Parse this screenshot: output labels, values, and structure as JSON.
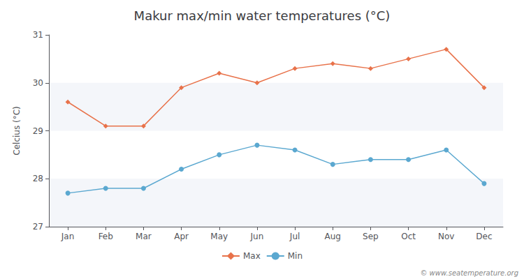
{
  "chart_data": {
    "type": "line",
    "title": "Makur max/min water temperatures (°C)",
    "ylabel": "Celcius (°C)",
    "categories": [
      "Jan",
      "Feb",
      "Mar",
      "Apr",
      "May",
      "Jun",
      "Jul",
      "Aug",
      "Sep",
      "Oct",
      "Nov",
      "Dec"
    ],
    "series": [
      {
        "name": "Max",
        "color": "#e8724a",
        "marker": "diamond",
        "values": [
          29.6,
          29.1,
          29.1,
          29.9,
          30.2,
          30.0,
          30.3,
          30.4,
          30.3,
          30.5,
          30.7,
          29.9
        ]
      },
      {
        "name": "Min",
        "color": "#5ba8d0",
        "marker": "circle",
        "values": [
          27.7,
          27.8,
          27.8,
          28.2,
          28.5,
          28.7,
          28.6,
          28.3,
          28.4,
          28.4,
          28.6,
          27.9
        ]
      }
    ],
    "ylim": [
      27,
      31
    ],
    "yticks": [
      27,
      28,
      29,
      30,
      31
    ],
    "grid": false,
    "legend": "bottom",
    "annotations": [
      "© www.seatemperature.org"
    ]
  }
}
